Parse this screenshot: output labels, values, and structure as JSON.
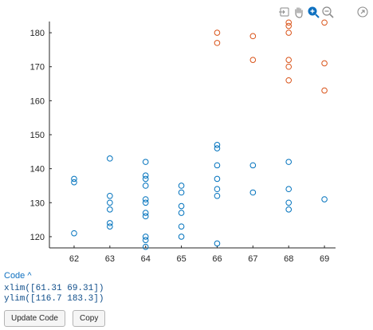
{
  "toolbar": {
    "icons": [
      "export-icon",
      "pan-icon",
      "zoom-in-icon",
      "zoom-out-icon",
      "restore-view-icon"
    ]
  },
  "chart_data": {
    "type": "scatter",
    "xlim": [
      61.31,
      69.31
    ],
    "ylim": [
      116.7,
      183.3
    ],
    "x_ticks": [
      62,
      63,
      64,
      65,
      66,
      67,
      68,
      69
    ],
    "y_ticks": [
      120,
      130,
      140,
      150,
      160,
      170,
      180
    ],
    "grid": false,
    "series": [
      {
        "color": "#0072bd",
        "marker": "circle-open",
        "points": [
          [
            62,
            137
          ],
          [
            62,
            136
          ],
          [
            62,
            121
          ],
          [
            63,
            143
          ],
          [
            63,
            132
          ],
          [
            63,
            130
          ],
          [
            63,
            128
          ],
          [
            63,
            124
          ],
          [
            63,
            123
          ],
          [
            64,
            142
          ],
          [
            64,
            138
          ],
          [
            64,
            137
          ],
          [
            64,
            135
          ],
          [
            64,
            131
          ],
          [
            64,
            130
          ],
          [
            64,
            127
          ],
          [
            64,
            126
          ],
          [
            64,
            120
          ],
          [
            64,
            119
          ],
          [
            64,
            117
          ],
          [
            65,
            135
          ],
          [
            65,
            133
          ],
          [
            65,
            129
          ],
          [
            65,
            127
          ],
          [
            65,
            123
          ],
          [
            65,
            120
          ],
          [
            66,
            147
          ],
          [
            66,
            146
          ],
          [
            66,
            141
          ],
          [
            66,
            137
          ],
          [
            66,
            134
          ],
          [
            66,
            132
          ],
          [
            66,
            118
          ],
          [
            67,
            141
          ],
          [
            67,
            133
          ],
          [
            68,
            142
          ],
          [
            68,
            134
          ],
          [
            68,
            130
          ],
          [
            68,
            128
          ],
          [
            69,
            131
          ]
        ]
      },
      {
        "color": "#d95319",
        "marker": "circle-open",
        "points": [
          [
            66,
            180
          ],
          [
            66,
            177
          ],
          [
            67,
            179
          ],
          [
            67,
            172
          ],
          [
            68,
            183
          ],
          [
            68,
            182
          ],
          [
            68,
            180
          ],
          [
            68,
            172
          ],
          [
            68,
            170
          ],
          [
            68,
            166
          ],
          [
            69,
            183
          ],
          [
            69,
            171
          ],
          [
            69,
            163
          ]
        ]
      }
    ]
  },
  "code": {
    "toggle_label": "Code ^",
    "lines": [
      "xlim([61.31 69.31])",
      "ylim([116.7 183.3])"
    ]
  },
  "buttons": {
    "update_label": "Update Code",
    "copy_label": "Copy"
  }
}
